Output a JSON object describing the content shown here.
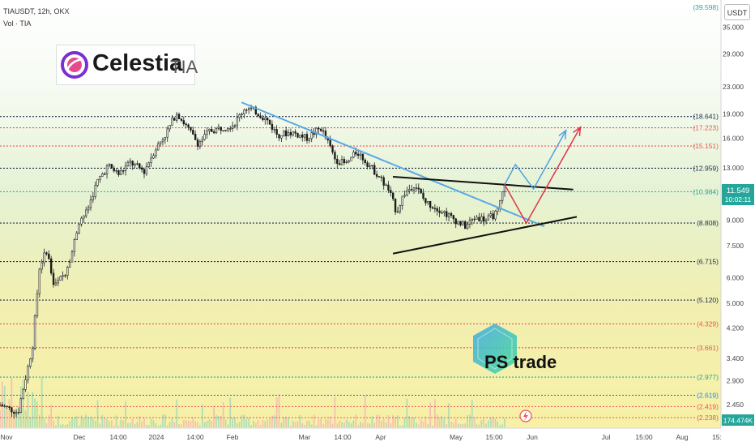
{
  "header": {
    "symbol_line": "TIAUSDT, 12h, OKX",
    "vol_line": "Vol · TIA"
  },
  "logo": {
    "name": "Celestia",
    "ticker": "TIA"
  },
  "watermark": {
    "text": "PS trade"
  },
  "price_scale_unit": "USDT",
  "current_price": {
    "value": "11.549",
    "countdown": "10:02:11"
  },
  "volume_label": "174.474K",
  "colors": {
    "up": "#26a69a",
    "down": "#ef5350",
    "candle_body": "#1b1b1b",
    "trendline_blue": "#5aa9e6",
    "support_black": "#111111",
    "projection_up": "#4ea3e0",
    "projection_down": "#e0334b"
  },
  "chart_data": {
    "type": "candlestick",
    "title": "TIAUSDT, 12h, OKX",
    "xaxis_ticks": [
      "Nov",
      "Dec",
      "14:00",
      "2024",
      "14:00",
      "Feb",
      "Mar",
      "14:00",
      "Apr",
      "May",
      "15:00",
      "Jun",
      "Jul",
      "15:00",
      "Aug",
      "15:"
    ],
    "yaxis_scale": "log",
    "ylim": [
      2.2,
      40
    ],
    "yaxis_ticks": [
      35,
      29,
      23,
      19,
      16,
      13,
      11,
      9,
      7.5,
      6,
      5,
      4.2,
      3.4,
      2.9,
      2.45
    ],
    "yaxis_tick_labels": [
      "35.000",
      "29.000",
      "23.000",
      "19.000",
      "16.000",
      "13.000",
      "11.000",
      "9.000",
      "7.500",
      "6.000",
      "5.000",
      "4.200",
      "3.400",
      "2.900",
      "2.450"
    ],
    "levels": [
      {
        "label": "(39.598)",
        "value": 39.598,
        "color": "#26a69a"
      },
      {
        "label": "(18.641)",
        "value": 18.641,
        "color": "#1b2a4e"
      },
      {
        "label": "(17.223)",
        "value": 17.223,
        "color": "#ef5350"
      },
      {
        "label": "(15.151)",
        "value": 15.151,
        "color": "#ef5350"
      },
      {
        "label": "(12.959)",
        "value": 12.959,
        "color": "#1b2a4e"
      },
      {
        "label": "(10.984)",
        "value": 10.984,
        "color": "#26a69a"
      },
      {
        "label": "(8.808)",
        "value": 8.808,
        "color": "#1b2a4e"
      },
      {
        "label": "(6.715)",
        "value": 6.715,
        "color": "#1b2a4e"
      },
      {
        "label": "(5.120)",
        "value": 5.12,
        "color": "#1b2a4e"
      },
      {
        "label": "(4.329)",
        "value": 4.329,
        "color": "#ef5350"
      },
      {
        "label": "(3.661)",
        "value": 3.661,
        "color": "#ef5350"
      },
      {
        "label": "(2.977)",
        "value": 2.977,
        "color": "#26a69a"
      },
      {
        "label": "(2.619)",
        "value": 2.619,
        "color": "#1e88e5"
      },
      {
        "label": "(2.419)",
        "value": 2.419,
        "color": "#ef5350"
      },
      {
        "label": "(2.238)",
        "value": 2.238,
        "color": "#ef5350"
      }
    ],
    "price_path": [
      [
        0.0,
        2.45
      ],
      [
        0.025,
        2.32
      ],
      [
        0.045,
        3.7
      ],
      [
        0.055,
        6.5
      ],
      [
        0.065,
        7.3
      ],
      [
        0.075,
        5.6
      ],
      [
        0.09,
        6.2
      ],
      [
        0.1,
        7.2
      ],
      [
        0.11,
        9.0
      ],
      [
        0.12,
        9.5
      ],
      [
        0.135,
        11.8
      ],
      [
        0.15,
        13.2
      ],
      [
        0.165,
        12.4
      ],
      [
        0.18,
        13.5
      ],
      [
        0.2,
        12.7
      ],
      [
        0.215,
        14.8
      ],
      [
        0.23,
        16.5
      ],
      [
        0.245,
        19.2
      ],
      [
        0.26,
        17.2
      ],
      [
        0.275,
        15.4
      ],
      [
        0.29,
        16.8
      ],
      [
        0.31,
        17.3
      ],
      [
        0.325,
        17.7
      ],
      [
        0.34,
        19.9
      ],
      [
        0.355,
        19.3
      ],
      [
        0.37,
        18.2
      ],
      [
        0.385,
        16.4
      ],
      [
        0.405,
        16.7
      ],
      [
        0.425,
        16.0
      ],
      [
        0.445,
        17.2
      ],
      [
        0.455,
        15.5
      ],
      [
        0.465,
        13.8
      ],
      [
        0.48,
        13.3
      ],
      [
        0.495,
        14.6
      ],
      [
        0.51,
        13.4
      ],
      [
        0.525,
        12.3
      ],
      [
        0.54,
        11.0
      ],
      [
        0.55,
        9.5
      ],
      [
        0.56,
        10.8
      ],
      [
        0.575,
        11.6
      ],
      [
        0.59,
        10.2
      ],
      [
        0.61,
        9.7
      ],
      [
        0.625,
        9.2
      ],
      [
        0.645,
        8.6
      ],
      [
        0.66,
        9.2
      ],
      [
        0.675,
        9.0
      ],
      [
        0.69,
        9.5
      ],
      [
        0.7,
        11.549
      ]
    ],
    "annotations": {
      "descending_trendline": [
        [
          0.335,
          20.6
        ],
        [
          0.755,
          8.6
        ]
      ],
      "triangle_upper": [
        [
          0.545,
          12.2
        ],
        [
          0.795,
          11.15
        ]
      ],
      "triangle_lower": [
        [
          0.545,
          7.1
        ],
        [
          0.8,
          9.2
        ]
      ],
      "projection_bullish": [
        [
          0.7,
          11.549
        ],
        [
          0.715,
          13.3
        ],
        [
          0.74,
          11.2
        ],
        [
          0.785,
          16.9
        ]
      ],
      "projection_bearish": [
        [
          0.7,
          11.549
        ],
        [
          0.73,
          8.8
        ],
        [
          0.805,
          17.3
        ]
      ]
    }
  }
}
